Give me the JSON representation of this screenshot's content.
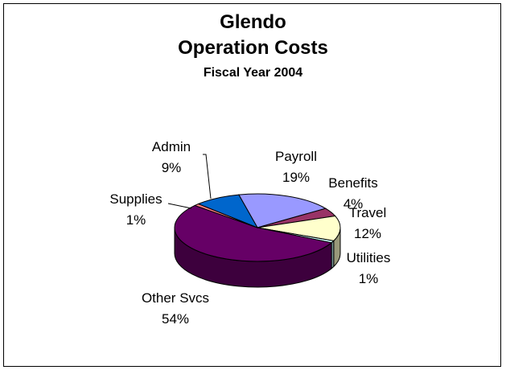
{
  "chart_data": {
    "type": "pie",
    "title_lines": [
      "Glendo",
      "Operation Costs"
    ],
    "subtitle": "Fiscal Year 2004",
    "three_d": true,
    "slices": [
      {
        "label": "Payroll",
        "pct_label": "19%",
        "value": 19,
        "color": "#9999ff"
      },
      {
        "label": "Benefits",
        "pct_label": "4%",
        "value": 4,
        "color": "#993366"
      },
      {
        "label": "Travel",
        "pct_label": "12%",
        "value": 12,
        "color": "#ffffcc"
      },
      {
        "label": "Utilities",
        "pct_label": "1%",
        "value": 1,
        "color": "#ccffff"
      },
      {
        "label": "Other Svcs",
        "pct_label": "54%",
        "value": 54,
        "color": "#660066"
      },
      {
        "label": "Supplies",
        "pct_label": "1%",
        "value": 1,
        "color": "#ff8080"
      },
      {
        "label": "Admin",
        "pct_label": "9%",
        "value": 9,
        "color": "#0066cc"
      }
    ]
  }
}
